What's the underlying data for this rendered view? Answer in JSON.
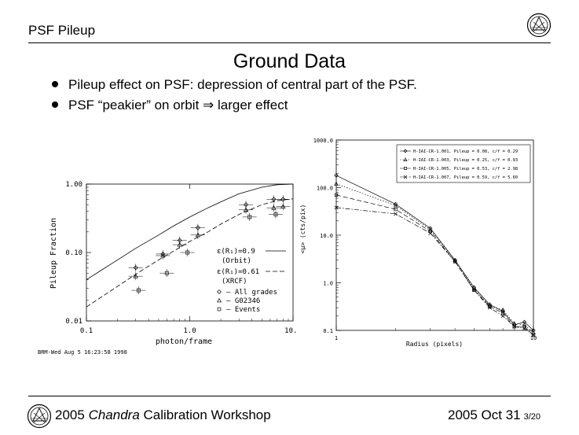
{
  "header": {
    "title": "PSF Pileup"
  },
  "slide": {
    "title": "Ground Data",
    "bullets": [
      "Pileup effect on PSF: depression of central part of the PSF.",
      "PSF “peakier” on orbit ⇒ larger effect"
    ]
  },
  "footer": {
    "year": "2005",
    "chandra": "Chandra",
    "workshop": "Calibration Workshop",
    "date": "2005 Oct 31",
    "page": "3/20"
  },
  "chart_data": [
    {
      "type": "scatter",
      "title": "",
      "xlabel": "photon/frame",
      "ylabel": "Pileup Fraction",
      "xscale": "log",
      "yscale": "log",
      "xlim": [
        0.1,
        10.0
      ],
      "ylim": [
        0.01,
        1.0
      ],
      "xticks": [
        "0.1",
        "1.0",
        "10.0"
      ],
      "yticks": [
        "0.01",
        "0.10",
        "1.00"
      ],
      "footnote": "BRM-Wed Aug  5 16:23:58 1998",
      "legend": [
        {
          "name": "ε(R₁)=0.9",
          "note": "(Orbit)",
          "style": "solid"
        },
        {
          "name": "ε(R₁)=0.61",
          "note": "(XRCF)",
          "style": "dashed"
        },
        {
          "name": "All grades",
          "marker": "diamond"
        },
        {
          "name": "G02346",
          "marker": "triangle"
        },
        {
          "name": "Events",
          "marker": "square"
        }
      ],
      "series": [
        {
          "name": "Orbit model",
          "style": "solid",
          "x": [
            0.1,
            0.2,
            0.3,
            0.5,
            0.7,
            1.0,
            1.5,
            2.0,
            3.0,
            5.0,
            7.0,
            10.0
          ],
          "y": [
            0.04,
            0.078,
            0.115,
            0.18,
            0.245,
            0.33,
            0.45,
            0.55,
            0.72,
            0.9,
            0.98,
            1.0
          ]
        },
        {
          "name": "XRCF model",
          "style": "dashed",
          "x": [
            0.1,
            0.2,
            0.3,
            0.5,
            0.7,
            1.0,
            1.5,
            2.0,
            3.0,
            5.0,
            7.0,
            10.0
          ],
          "y": [
            0.016,
            0.032,
            0.048,
            0.078,
            0.105,
            0.145,
            0.2,
            0.26,
            0.36,
            0.5,
            0.57,
            0.61
          ]
        },
        {
          "name": "All grades",
          "marker": "diamond",
          "x": [
            0.3,
            0.55,
            0.8,
            1.2,
            3.5,
            6.5,
            8.0
          ],
          "y": [
            0.06,
            0.095,
            0.15,
            0.23,
            0.5,
            0.6,
            0.6
          ]
        },
        {
          "name": "G02346",
          "marker": "triangle",
          "x": [
            0.3,
            0.55,
            0.8,
            1.2,
            3.5,
            6.5,
            8.0
          ],
          "y": [
            0.045,
            0.09,
            0.13,
            0.18,
            0.42,
            0.45,
            0.47
          ]
        },
        {
          "name": "Events",
          "marker": "square",
          "x": [
            0.32,
            0.6,
            0.95,
            3.8,
            6.8
          ],
          "y": [
            0.028,
            0.05,
            0.1,
            0.33,
            0.36
          ]
        }
      ]
    },
    {
      "type": "line",
      "title": "",
      "xlabel": "Radius (pixels)",
      "ylabel": "<μ> (cts/pix)",
      "xscale": "log",
      "yscale": "log",
      "xlim": [
        1,
        10
      ],
      "ylim": [
        0.1,
        1000.0
      ],
      "xticks": [
        "1",
        "10"
      ],
      "yticks": [
        "0.1",
        "1.0",
        "10.0",
        "100.0",
        "1000.0"
      ],
      "series": [
        {
          "name": "H-IAI-CR-1.001, Pileup = 0.08, c/f = 0.29",
          "marker": "diamond",
          "style": "solid",
          "x": [
            1,
            2,
            3,
            4,
            5,
            6,
            7,
            8,
            9,
            10
          ],
          "y": [
            180,
            45,
            14,
            3,
            0.8,
            0.35,
            0.25,
            0.13,
            0.15,
            0.1
          ]
        },
        {
          "name": "H-IAI-CR-1.003, Pileup = 0.25, c/f = 0.93",
          "marker": "triangle",
          "style": "dotted",
          "x": [
            1,
            2,
            3,
            4,
            5,
            6,
            7,
            8,
            9,
            10
          ],
          "y": [
            120,
            42,
            13,
            3,
            0.75,
            0.33,
            0.27,
            0.14,
            0.13,
            0.09
          ]
        },
        {
          "name": "H-IAI-CR-1.005, Pileup = 0.53, c/f = 2.98",
          "marker": "square",
          "style": "dashed",
          "x": [
            1,
            2,
            3,
            4,
            5,
            6,
            7,
            8,
            9,
            10
          ],
          "y": [
            70,
            35,
            12,
            2.8,
            0.7,
            0.32,
            0.23,
            0.12,
            0.12,
            0.08
          ]
        },
        {
          "name": "H-IAI-CR-1.007, Pileup = 0.59, c/f = 5.60",
          "marker": "x",
          "style": "dashdot",
          "x": [
            1,
            2,
            3,
            4,
            5,
            6,
            7,
            8,
            9,
            10
          ],
          "y": [
            38,
            28,
            11,
            2.8,
            0.7,
            0.3,
            0.2,
            0.12,
            0.11,
            0.08
          ]
        }
      ]
    }
  ]
}
